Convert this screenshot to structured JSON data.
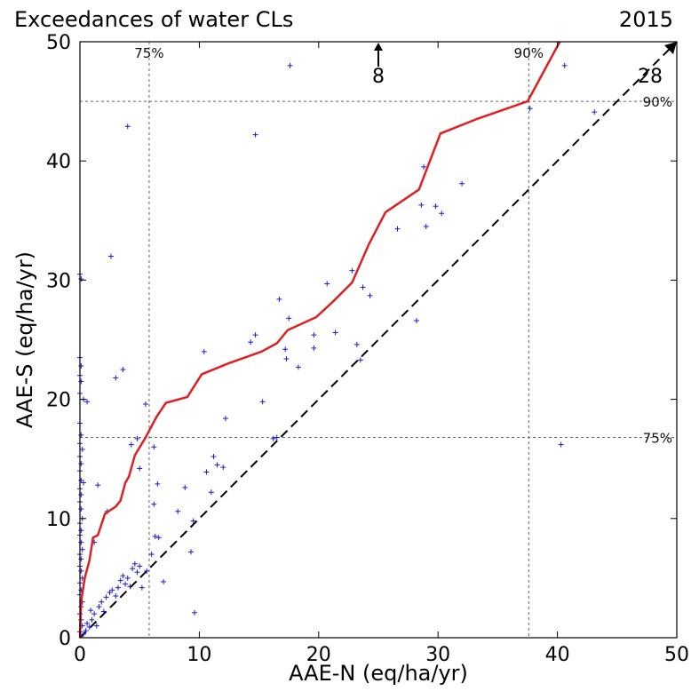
{
  "chart_data": {
    "type": "scatter",
    "title": "Exceedances of water CLs",
    "year": "2015",
    "xlabel": "AAE-N (eq/ha/yr)",
    "ylabel": "AAE-S (eq/ha/yr)",
    "xlim": [
      0,
      50
    ],
    "ylim": [
      0,
      50
    ],
    "xticks": [
      "0",
      "10",
      "20",
      "30",
      "40",
      "50"
    ],
    "yticks": [
      "0",
      "10",
      "20",
      "30",
      "40",
      "50"
    ],
    "grid": false,
    "colors": {
      "points": "#1a1adb",
      "line": "#e02020",
      "ref": "#000000",
      "percentile": "#666666"
    },
    "percentile_lines": {
      "x": [
        {
          "label": "75%",
          "value": 5.8
        },
        {
          "label": "90%",
          "value": 37.6
        }
      ],
      "y": [
        {
          "label": "75%",
          "value": 16.8
        },
        {
          "label": "90%",
          "value": 45.0
        }
      ]
    },
    "off_scale": [
      {
        "label": "8",
        "x": 25.0,
        "direction": "up"
      },
      {
        "label": "28",
        "direction": "diagonal"
      }
    ],
    "reference_line": {
      "style": "dashed",
      "points": [
        [
          0,
          0
        ],
        [
          50,
          50
        ]
      ]
    },
    "series": [
      {
        "type": "line",
        "points": [
          [
            0,
            0
          ],
          [
            0.1,
            3
          ],
          [
            0.4,
            5
          ],
          [
            0.8,
            6.5
          ],
          [
            1.1,
            8.4
          ],
          [
            1.5,
            8.6
          ],
          [
            1.8,
            9.5
          ],
          [
            2.1,
            10.4
          ],
          [
            3.0,
            11.0
          ],
          [
            3.4,
            11.5
          ],
          [
            3.8,
            13.0
          ],
          [
            4.1,
            13.5
          ],
          [
            4.6,
            15.3
          ],
          [
            5.5,
            16.8
          ],
          [
            6.4,
            18.5
          ],
          [
            7.2,
            19.7
          ],
          [
            9.0,
            20.2
          ],
          [
            10.2,
            22.1
          ],
          [
            12.4,
            23.0
          ],
          [
            15.2,
            24.0
          ],
          [
            16.5,
            24.7
          ],
          [
            17.4,
            25.8
          ],
          [
            19.8,
            26.9
          ],
          [
            21.2,
            28.2
          ],
          [
            22.8,
            29.8
          ],
          [
            24.2,
            33.0
          ],
          [
            25.6,
            35.7
          ],
          [
            28.4,
            37.6
          ],
          [
            30.2,
            42.3
          ],
          [
            33.2,
            43.5
          ],
          [
            37.5,
            45.0
          ],
          [
            40.2,
            50.0
          ]
        ]
      },
      {
        "type": "scatter",
        "points": [
          [
            0.0,
            30.5
          ],
          [
            0.1,
            30.1
          ],
          [
            0.0,
            23.5
          ],
          [
            0.1,
            22.8
          ],
          [
            0.0,
            22.0
          ],
          [
            0.1,
            21.5
          ],
          [
            0.0,
            20.5
          ],
          [
            0.3,
            20.0
          ],
          [
            0.6,
            19.8
          ],
          [
            0.0,
            18.0
          ],
          [
            0.1,
            17.0
          ],
          [
            0.0,
            16.3
          ],
          [
            0.2,
            15.8
          ],
          [
            0.0,
            15.2
          ],
          [
            0.1,
            14.6
          ],
          [
            0.0,
            14.0
          ],
          [
            0.1,
            13.2
          ],
          [
            0.3,
            13.0
          ],
          [
            0.0,
            12.5
          ],
          [
            0.1,
            12.0
          ],
          [
            0.0,
            11.4
          ],
          [
            0.1,
            10.8
          ],
          [
            0.2,
            10.0
          ],
          [
            0.0,
            9.6
          ],
          [
            0.1,
            9.0
          ],
          [
            0.0,
            8.6
          ],
          [
            0.1,
            8.0
          ],
          [
            0.2,
            7.4
          ],
          [
            0.0,
            7.0
          ],
          [
            0.1,
            6.6
          ],
          [
            0.0,
            6.0
          ],
          [
            0.1,
            5.6
          ],
          [
            0.2,
            5.0
          ],
          [
            0.0,
            4.6
          ],
          [
            0.1,
            4.0
          ],
          [
            0.0,
            3.6
          ],
          [
            0.2,
            3.0
          ],
          [
            0.1,
            2.6
          ],
          [
            0.0,
            2.0
          ],
          [
            0.1,
            1.5
          ],
          [
            0.2,
            1.0
          ],
          [
            0.0,
            0.5
          ],
          [
            0.3,
            0.3
          ],
          [
            0.5,
            0.6
          ],
          [
            0.6,
            1.2
          ],
          [
            0.8,
            0.9
          ],
          [
            1.0,
            1.5
          ],
          [
            1.2,
            2.0
          ],
          [
            0.9,
            2.3
          ],
          [
            1.4,
            1.0
          ],
          [
            1.6,
            2.6
          ],
          [
            1.8,
            3.0
          ],
          [
            2.0,
            2.2
          ],
          [
            2.2,
            3.4
          ],
          [
            2.5,
            3.8
          ],
          [
            2.7,
            4.0
          ],
          [
            3.0,
            3.5
          ],
          [
            3.2,
            4.2
          ],
          [
            3.4,
            4.8
          ],
          [
            3.6,
            5.2
          ],
          [
            3.8,
            4.5
          ],
          [
            4.0,
            5.0
          ],
          [
            4.2,
            4.3
          ],
          [
            4.4,
            5.8
          ],
          [
            4.6,
            6.2
          ],
          [
            4.8,
            5.5
          ],
          [
            5.0,
            6.0
          ],
          [
            5.2,
            4.2
          ],
          [
            5.6,
            5.6
          ],
          [
            6.0,
            7.0
          ],
          [
            6.3,
            8.5
          ],
          [
            6.6,
            8.4
          ],
          [
            7.0,
            4.7
          ],
          [
            8.2,
            10.6
          ],
          [
            8.8,
            12.6
          ],
          [
            9.5,
            9.8
          ],
          [
            9.3,
            7.2
          ],
          [
            9.6,
            2.1
          ],
          [
            10.6,
            13.9
          ],
          [
            11.2,
            15.2
          ],
          [
            11.5,
            14.5
          ],
          [
            11.0,
            12.2
          ],
          [
            12.2,
            18.4
          ],
          [
            12.0,
            14.3
          ],
          [
            6.2,
            11.2
          ],
          [
            6.5,
            12.9
          ],
          [
            6.2,
            16.0
          ],
          [
            5.5,
            19.6
          ],
          [
            4.3,
            16.2
          ],
          [
            4.8,
            16.7
          ],
          [
            5.0,
            14.2
          ],
          [
            2.6,
            32.0
          ],
          [
            3.0,
            21.8
          ],
          [
            3.6,
            22.5
          ],
          [
            4.0,
            42.9
          ],
          [
            2.3,
            10.6
          ],
          [
            1.5,
            12.8
          ],
          [
            1.2,
            8.0
          ],
          [
            10.4,
            24.0
          ],
          [
            14.3,
            24.8
          ],
          [
            14.7,
            42.2
          ],
          [
            14.7,
            25.4
          ],
          [
            15.3,
            19.8
          ],
          [
            16.2,
            16.7
          ],
          [
            16.5,
            16.8
          ],
          [
            16.7,
            28.4
          ],
          [
            17.2,
            24.2
          ],
          [
            17.3,
            23.4
          ],
          [
            17.5,
            26.8
          ],
          [
            17.6,
            48.0
          ],
          [
            18.3,
            22.7
          ],
          [
            19.6,
            25.4
          ],
          [
            19.6,
            24.3
          ],
          [
            20.7,
            29.7
          ],
          [
            21.4,
            25.6
          ],
          [
            22.8,
            30.8
          ],
          [
            23.2,
            24.6
          ],
          [
            23.5,
            23.3
          ],
          [
            23.7,
            29.4
          ],
          [
            24.3,
            28.7
          ],
          [
            26.6,
            34.3
          ],
          [
            28.2,
            26.6
          ],
          [
            28.6,
            36.3
          ],
          [
            28.8,
            39.5
          ],
          [
            29.0,
            34.5
          ],
          [
            29.8,
            36.2
          ],
          [
            30.3,
            35.6
          ],
          [
            32.0,
            38.1
          ],
          [
            37.7,
            44.4
          ],
          [
            40.3,
            16.2
          ],
          [
            40.6,
            48.0
          ],
          [
            43.1,
            44.1
          ]
        ]
      }
    ]
  }
}
